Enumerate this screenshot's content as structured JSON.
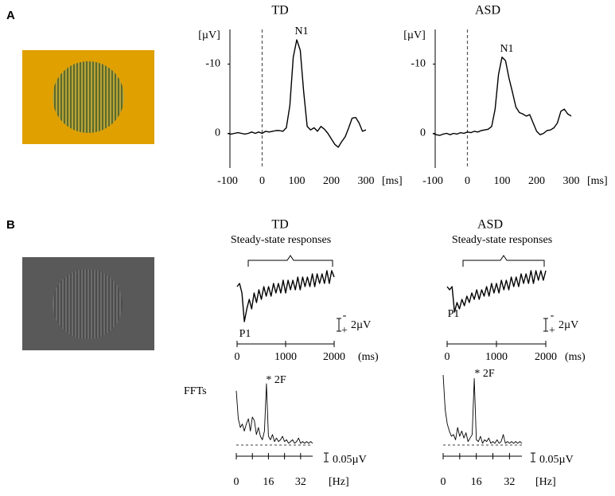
{
  "panel_labels": [
    "A",
    "B"
  ],
  "ffts_label": "FFTs",
  "chart_data": [
    {
      "type": "line",
      "title": "TD",
      "xlabel": "[ms]",
      "ylabel": "[µV]",
      "annotation": "N1",
      "color": "#000000",
      "xlim": [
        -100,
        300
      ],
      "xticks": [
        -100,
        0,
        100,
        200,
        300
      ],
      "ylim": [
        5,
        -15
      ],
      "yticks": [
        0,
        -10
      ],
      "vline": 0,
      "x": [
        -100,
        -90,
        -80,
        -70,
        -60,
        -50,
        -40,
        -30,
        -20,
        -10,
        0,
        10,
        20,
        30,
        40,
        50,
        60,
        70,
        80,
        90,
        100,
        110,
        120,
        130,
        140,
        150,
        160,
        170,
        180,
        190,
        200,
        210,
        220,
        230,
        240,
        250,
        260,
        270,
        280,
        290,
        300
      ],
      "values": [
        0,
        0.1,
        0,
        -0.1,
        0,
        0.1,
        0,
        -0.2,
        0,
        -0.2,
        0,
        -0.3,
        -0.2,
        -0.3,
        -0.4,
        -0.4,
        -0.3,
        -0.8,
        -4,
        -11,
        -13.5,
        -12,
        -6,
        -1,
        -0.5,
        -0.8,
        -0.3,
        -1,
        -0.6,
        0,
        0.8,
        1.6,
        2,
        1.2,
        0.5,
        -0.8,
        -2.2,
        -2.3,
        -1.5,
        -0.3,
        -0.5
      ]
    },
    {
      "type": "line",
      "title": "ASD",
      "xlabel": "[ms]",
      "ylabel": "[µV]",
      "annotation": "N1",
      "color": "#000000",
      "xlim": [
        -100,
        300
      ],
      "xticks": [
        -100,
        0,
        100,
        200,
        300
      ],
      "ylim": [
        5,
        -15
      ],
      "yticks": [
        0,
        -10
      ],
      "vline": 0,
      "x": [
        -100,
        -90,
        -80,
        -70,
        -60,
        -50,
        -40,
        -30,
        -20,
        -10,
        0,
        10,
        20,
        30,
        40,
        50,
        60,
        70,
        80,
        90,
        100,
        110,
        120,
        130,
        140,
        150,
        160,
        170,
        180,
        190,
        200,
        210,
        220,
        230,
        240,
        250,
        260,
        270,
        280,
        290,
        300
      ],
      "values": [
        0,
        0.2,
        0.3,
        0.1,
        0,
        0.2,
        0,
        0.1,
        -0.1,
        0,
        -0.2,
        -0.1,
        -0.3,
        -0.2,
        -0.4,
        -0.5,
        -0.6,
        -1,
        -3.5,
        -8.5,
        -11,
        -10.5,
        -8,
        -6,
        -3.8,
        -3,
        -2.8,
        -2.5,
        -2.7,
        -1.5,
        -0.3,
        0.2,
        0,
        -0.4,
        -0.5,
        -0.8,
        -1.5,
        -3.2,
        -3.5,
        -2.8,
        -2.5
      ]
    },
    {
      "type": "line",
      "title": "TD",
      "annotation": "Steady-state responses",
      "peak_label": "P1",
      "xlabel": "(ms)",
      "color": "#000000",
      "xlim": [
        0,
        2000
      ],
      "xticks": [
        0,
        1000,
        2000
      ],
      "ylim": [
        -5,
        6
      ],
      "scale_bar": {
        "value": 2,
        "label": "2µV",
        "signs": [
          "-",
          "+"
        ]
      },
      "x": [
        0,
        50,
        100,
        150,
        200,
        250,
        300,
        350,
        400,
        450,
        500,
        550,
        600,
        650,
        700,
        750,
        800,
        850,
        900,
        950,
        1000,
        1050,
        1100,
        1150,
        1200,
        1250,
        1300,
        1350,
        1400,
        1450,
        1500,
        1550,
        1600,
        1650,
        1700,
        1750,
        1800,
        1850,
        1900,
        1950,
        2000
      ],
      "values": [
        2.5,
        3,
        1.5,
        -3,
        -1,
        0.5,
        -1,
        1.5,
        0,
        2,
        0.5,
        2.5,
        1,
        2.5,
        1,
        3,
        1.5,
        3,
        1.5,
        3.5,
        1.5,
        3.5,
        2,
        3.5,
        2,
        4,
        2,
        4,
        2.5,
        4,
        2.5,
        4.5,
        2.5,
        4.5,
        3,
        4.5,
        3,
        5,
        3,
        5,
        4
      ]
    },
    {
      "type": "line",
      "title": "ASD",
      "annotation": "Steady-state responses",
      "peak_label": "P1",
      "xlabel": "(ms)",
      "color": "#000000",
      "xlim": [
        0,
        2000
      ],
      "xticks": [
        0,
        1000,
        2000
      ],
      "ylim": [
        -5,
        6
      ],
      "scale_bar": {
        "value": 2,
        "label": "2µV",
        "signs": [
          "-",
          "+"
        ]
      },
      "x": [
        0,
        50,
        100,
        150,
        200,
        250,
        300,
        350,
        400,
        450,
        500,
        550,
        600,
        650,
        700,
        750,
        800,
        850,
        900,
        950,
        1000,
        1050,
        1100,
        1150,
        1200,
        1250,
        1300,
        1350,
        1400,
        1450,
        1500,
        1550,
        1600,
        1650,
        1700,
        1750,
        1800,
        1850,
        1900,
        1950,
        2000
      ],
      "values": [
        2.5,
        2,
        2.5,
        -1.5,
        0,
        -1,
        0.5,
        -0.5,
        1,
        0,
        1.5,
        0.5,
        2,
        0.5,
        2,
        1,
        2.5,
        1,
        3,
        1.5,
        3,
        1.5,
        3.5,
        2,
        3.5,
        2,
        4,
        2.5,
        4,
        2.5,
        4.5,
        3,
        4.5,
        3,
        5,
        3,
        5,
        3.5,
        5,
        3.5,
        5
      ]
    },
    {
      "type": "line",
      "annotation": "* 2F",
      "xlabel": "[Hz]",
      "color": "#000000",
      "xlim": [
        0,
        38
      ],
      "xticks": [
        0,
        16,
        32
      ],
      "xminor": [
        8,
        24
      ],
      "ylim": [
        0,
        0.4
      ],
      "scale_bar": {
        "value": 0.05,
        "label": "0.05µV"
      },
      "x": [
        0,
        1,
        2,
        3,
        4,
        5,
        6,
        7,
        8,
        9,
        10,
        11,
        12,
        13,
        14,
        15,
        16,
        17,
        18,
        19,
        20,
        21,
        22,
        23,
        24,
        25,
        26,
        27,
        28,
        29,
        30,
        31,
        32,
        33,
        34,
        35,
        36,
        37,
        38
      ],
      "values": [
        0.31,
        0.15,
        0.1,
        0.12,
        0.08,
        0.12,
        0.15,
        0.08,
        0.16,
        0.14,
        0.06,
        0.1,
        0.05,
        0.03,
        0.08,
        0.35,
        0.05,
        0.03,
        0.06,
        0.02,
        0.04,
        0.02,
        0.03,
        0.05,
        0.02,
        0.03,
        0.01,
        0.02,
        0.03,
        0.01,
        0.02,
        0.04,
        0.01,
        0.02,
        0.01,
        0.02,
        0.01,
        0.02,
        0.01
      ]
    },
    {
      "type": "line",
      "annotation": "* 2F",
      "xlabel": "[Hz]",
      "color": "#000000",
      "xlim": [
        0,
        38
      ],
      "xticks": [
        0,
        16,
        32
      ],
      "xminor": [
        8,
        24
      ],
      "ylim": [
        0,
        0.4
      ],
      "scale_bar": {
        "value": 0.05,
        "label": "0.05µV"
      },
      "x": [
        0,
        1,
        2,
        3,
        4,
        5,
        6,
        7,
        8,
        9,
        10,
        11,
        12,
        13,
        14,
        15,
        16,
        17,
        18,
        19,
        20,
        21,
        22,
        23,
        24,
        25,
        26,
        27,
        28,
        29,
        30,
        31,
        32,
        33,
        34,
        35,
        36,
        37,
        38
      ],
      "values": [
        0.4,
        0.2,
        0.12,
        0.08,
        0.05,
        0.06,
        0.03,
        0.1,
        0.05,
        0.08,
        0.04,
        0.07,
        0.02,
        0.04,
        0.06,
        0.38,
        0.03,
        0.02,
        0.05,
        0.01,
        0.03,
        0.02,
        0.04,
        0.01,
        0.02,
        0.01,
        0.03,
        0.01,
        0.02,
        0.06,
        0.01,
        0.02,
        0.01,
        0.02,
        0.01,
        0.02,
        0.01,
        0.02,
        0.01
      ]
    }
  ]
}
